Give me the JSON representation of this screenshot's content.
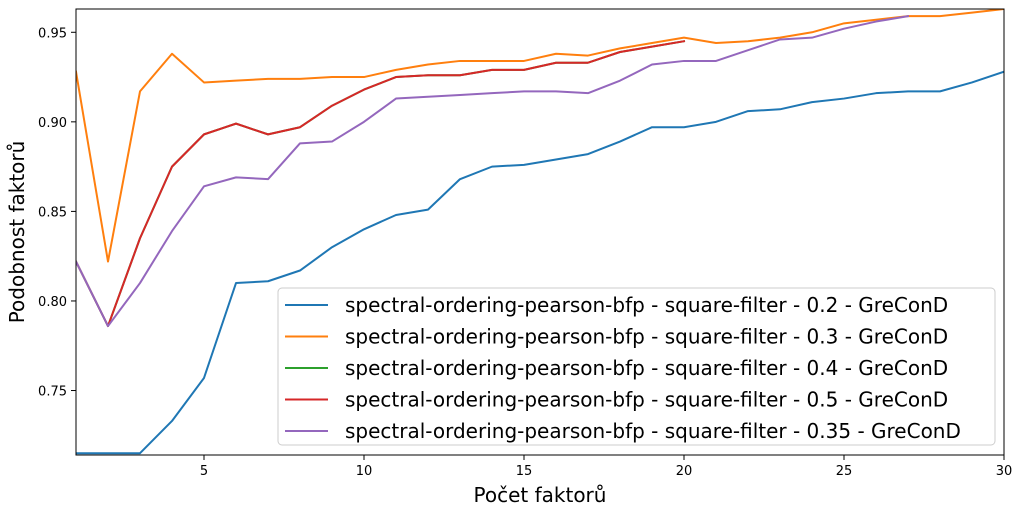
{
  "chart_data": {
    "type": "line",
    "xlabel": "Počet faktorů",
    "ylabel": "Podobnost faktorů",
    "xlim": [
      1,
      30
    ],
    "ylim": [
      0.714,
      0.963
    ],
    "xticks": [
      5,
      10,
      15,
      20,
      25,
      30
    ],
    "yticks": [
      0.75,
      0.8,
      0.85,
      0.9,
      0.95
    ],
    "ytick_labels": [
      "0.75",
      "0.80",
      "0.85",
      "0.90",
      "0.95"
    ],
    "grid": false,
    "legend_position": "bottom-right",
    "series": [
      {
        "name": "spectral-ordering-pearson-bfp - square-filter - 0.2 - GreConD",
        "color": "#1f77b4",
        "x": [
          1,
          2,
          3,
          4,
          5,
          6,
          7,
          8,
          9,
          10,
          11,
          12,
          13,
          14,
          15,
          16,
          17,
          18,
          19,
          20,
          21,
          22,
          23,
          24,
          25,
          26,
          27,
          28,
          29,
          30
        ],
        "y": [
          0.715,
          0.715,
          0.715,
          0.733,
          0.757,
          0.81,
          0.811,
          0.817,
          0.83,
          0.84,
          0.848,
          0.851,
          0.868,
          0.875,
          0.876,
          0.879,
          0.882,
          0.889,
          0.897,
          0.897,
          0.9,
          0.906,
          0.907,
          0.911,
          0.913,
          0.916,
          0.917,
          0.917,
          0.922,
          0.928
        ]
      },
      {
        "name": "spectral-ordering-pearson-bfp - square-filter - 0.3 - GreConD",
        "color": "#ff7f0e",
        "x": [
          1,
          2,
          3,
          4,
          5,
          6,
          7,
          8,
          9,
          10,
          11,
          12,
          13,
          14,
          15,
          16,
          17,
          18,
          19,
          20,
          21,
          22,
          23,
          24,
          25,
          26,
          27,
          28,
          29,
          30
        ],
        "y": [
          0.928,
          0.822,
          0.917,
          0.938,
          0.922,
          0.923,
          0.924,
          0.924,
          0.925,
          0.925,
          0.929,
          0.932,
          0.934,
          0.934,
          0.934,
          0.938,
          0.937,
          0.941,
          0.944,
          0.947,
          0.944,
          0.945,
          0.947,
          0.95,
          0.955,
          0.957,
          0.959,
          0.959,
          0.961,
          0.963
        ]
      },
      {
        "name": "spectral-ordering-pearson-bfp - square-filter - 0.4 - GreConD",
        "color": "#2ca02c",
        "x": [
          1,
          2,
          3,
          4,
          5,
          6,
          7,
          8,
          9,
          10,
          11,
          12,
          13,
          14,
          15,
          16,
          17,
          18,
          19,
          20
        ],
        "y": [
          0.822,
          0.786,
          0.835,
          0.875,
          0.893,
          0.899,
          0.893,
          0.897,
          0.909,
          0.918,
          0.925,
          0.926,
          0.926,
          0.929,
          0.929,
          0.933,
          0.933,
          0.939,
          0.942,
          0.945
        ]
      },
      {
        "name": "spectral-ordering-pearson-bfp - square-filter - 0.5 - GreConD",
        "color": "#d62728",
        "x": [
          1,
          2,
          3,
          4,
          5,
          6,
          7,
          8,
          9,
          10,
          11,
          12,
          13,
          14,
          15,
          16,
          17,
          18,
          19,
          20
        ],
        "y": [
          0.822,
          0.786,
          0.835,
          0.875,
          0.893,
          0.899,
          0.893,
          0.897,
          0.909,
          0.918,
          0.925,
          0.926,
          0.926,
          0.929,
          0.929,
          0.933,
          0.933,
          0.939,
          0.942,
          0.945
        ]
      },
      {
        "name": "spectral-ordering-pearson-bfp - square-filter - 0.35 - GreConD",
        "color": "#9467bd",
        "x": [
          1,
          2,
          3,
          4,
          5,
          6,
          7,
          8,
          9,
          10,
          11,
          12,
          13,
          14,
          15,
          16,
          17,
          18,
          19,
          20,
          21,
          22,
          23,
          24,
          25,
          26,
          27
        ],
        "y": [
          0.822,
          0.786,
          0.81,
          0.839,
          0.864,
          0.869,
          0.868,
          0.888,
          0.889,
          0.9,
          0.913,
          0.914,
          0.915,
          0.916,
          0.917,
          0.917,
          0.916,
          0.923,
          0.932,
          0.934,
          0.934,
          0.94,
          0.946,
          0.947,
          0.952,
          0.956,
          0.959
        ]
      }
    ]
  }
}
